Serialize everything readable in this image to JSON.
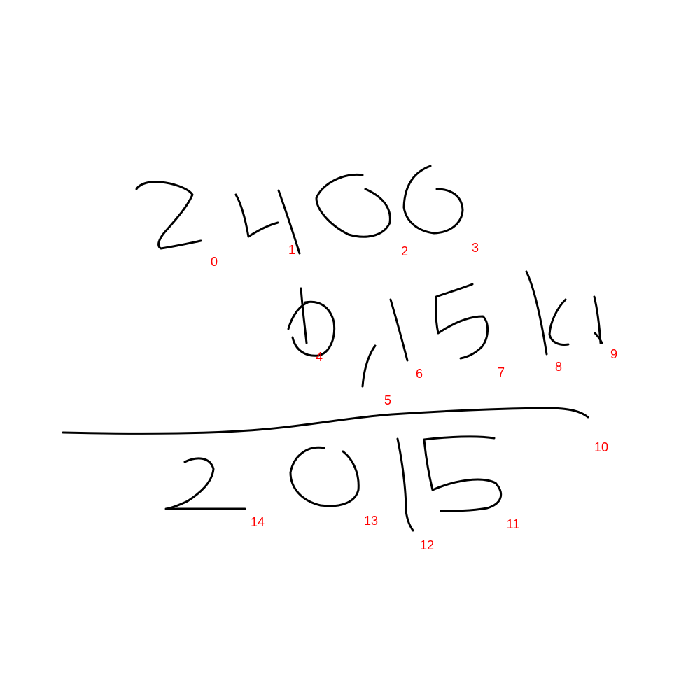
{
  "ink_color": "#000000",
  "label_color": "#ff0000",
  "stroke_labels": [
    "0",
    "1",
    "2",
    "3",
    "4",
    "5",
    "6",
    "7",
    "8",
    "9",
    "10",
    "11",
    "12",
    "13",
    "14"
  ]
}
